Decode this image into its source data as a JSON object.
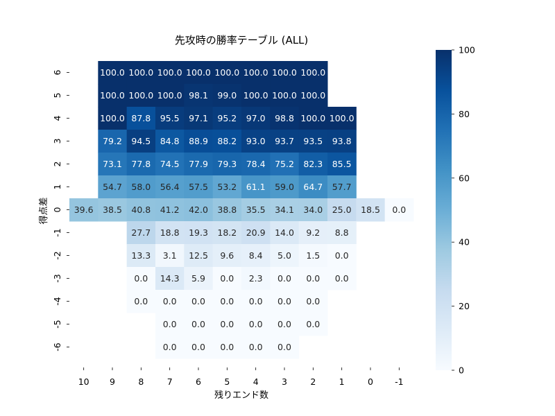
{
  "chart_data": {
    "type": "heatmap",
    "title": "先攻時の勝率テーブル (ALL)",
    "xlabel": "残りエンド数",
    "ylabel": "得点差",
    "x_categories": [
      "10",
      "9",
      "8",
      "7",
      "6",
      "5",
      "4",
      "3",
      "2",
      "1",
      "0",
      "-1"
    ],
    "y_categories": [
      "6",
      "5",
      "4",
      "3",
      "2",
      "1",
      "0",
      "-1",
      "-2",
      "-3",
      "-4",
      "-5",
      "-6"
    ],
    "values": [
      [
        null,
        100.0,
        100.0,
        100.0,
        100.0,
        100.0,
        100.0,
        100.0,
        100.0,
        null,
        null,
        null
      ],
      [
        null,
        100.0,
        100.0,
        100.0,
        98.1,
        99.0,
        100.0,
        100.0,
        100.0,
        null,
        null,
        null
      ],
      [
        null,
        100.0,
        87.8,
        95.5,
        97.1,
        95.2,
        97.0,
        98.8,
        100.0,
        100.0,
        null,
        null
      ],
      [
        null,
        79.2,
        94.5,
        84.8,
        88.9,
        88.2,
        93.0,
        93.7,
        93.5,
        93.8,
        null,
        null
      ],
      [
        null,
        73.1,
        77.8,
        74.5,
        77.9,
        79.3,
        78.4,
        75.2,
        82.3,
        85.5,
        null,
        null
      ],
      [
        null,
        54.7,
        58.0,
        56.4,
        57.5,
        53.2,
        61.1,
        59.0,
        64.7,
        57.7,
        null,
        null
      ],
      [
        39.6,
        38.5,
        40.8,
        41.2,
        42.0,
        38.8,
        35.5,
        34.1,
        34.0,
        25.0,
        18.5,
        0.0
      ],
      [
        null,
        null,
        27.7,
        18.8,
        19.3,
        18.2,
        20.9,
        14.0,
        9.2,
        8.8,
        null,
        null
      ],
      [
        null,
        null,
        13.3,
        3.1,
        12.5,
        9.6,
        8.4,
        5.0,
        1.5,
        0.0,
        null,
        null
      ],
      [
        null,
        null,
        0.0,
        14.3,
        5.9,
        0.0,
        2.3,
        0.0,
        0.0,
        0.0,
        null,
        null
      ],
      [
        null,
        null,
        0.0,
        0.0,
        0.0,
        0.0,
        0.0,
        0.0,
        0.0,
        null,
        null,
        null
      ],
      [
        null,
        null,
        null,
        0.0,
        0.0,
        0.0,
        0.0,
        0.0,
        0.0,
        null,
        null,
        null
      ],
      [
        null,
        null,
        null,
        0.0,
        0.0,
        0.0,
        0.0,
        0.0,
        null,
        null,
        null,
        null
      ]
    ],
    "colormap": "Blues",
    "vmin": 0,
    "vmax": 100,
    "colorbar_ticks": [
      "0",
      "20",
      "40",
      "60",
      "80",
      "100"
    ],
    "grid": false
  }
}
